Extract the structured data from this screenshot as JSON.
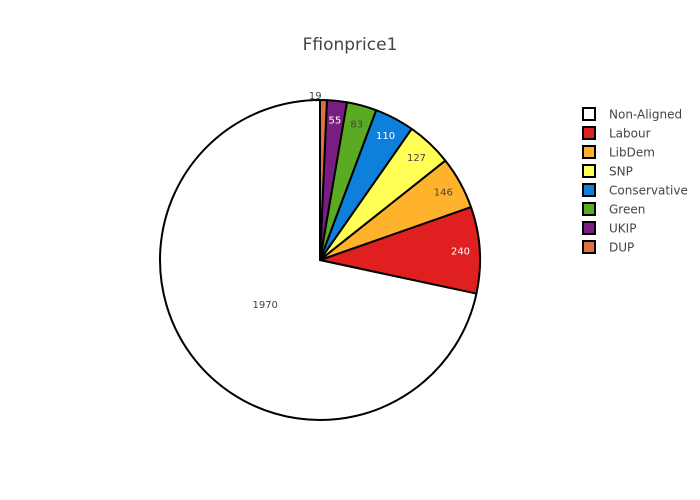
{
  "chart_data": {
    "type": "pie",
    "title": "Ffionprice1",
    "legend_position": "top-right",
    "sort": "descending",
    "direction": "counterclockwise",
    "labels": [
      "Non-Aligned",
      "Labour",
      "LibDem",
      "SNP",
      "Conservative",
      "Green",
      "UKIP",
      "DUP"
    ],
    "values": [
      1970,
      240,
      146,
      127,
      110,
      83,
      55,
      19
    ],
    "colors": [
      "#ffffff",
      "#e02020",
      "#ffb22c",
      "#ffff55",
      "#0f7fdc",
      "#5aaa22",
      "#7a1d82",
      "#e07040"
    ],
    "label_colors": [
      "#444444",
      "#ffffff",
      "#444444",
      "#444444",
      "#ffffff",
      "#444444",
      "#ffffff",
      "#444444"
    ]
  }
}
